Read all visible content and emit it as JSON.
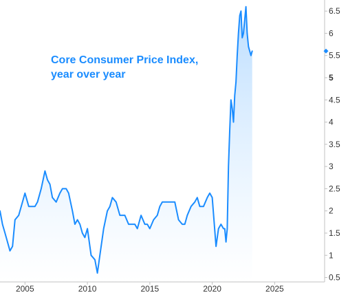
{
  "chart_data": {
    "type": "area",
    "title_lines": [
      "Core Consumer Price Index,",
      "year over year"
    ],
    "xlabel": "",
    "ylabel": "",
    "xlim": [
      2003.0,
      2029.0
    ],
    "ylim": [
      0.4,
      6.75
    ],
    "x_ticks": [
      2005,
      2010,
      2015,
      2020,
      2025
    ],
    "y_ticks": [
      0.5,
      1,
      1.5,
      2,
      2.5,
      3,
      3.5,
      4,
      4.5,
      5,
      5.5,
      6,
      6.5
    ],
    "y_tick_labels": [
      "0.5",
      "1",
      "1.5",
      "2",
      "2.5",
      "3",
      "3.5",
      "4",
      "4.5",
      "5",
      "5.5",
      "6",
      "6.5"
    ],
    "highlighted_tick": "5",
    "last_value": 5.6,
    "grid": false,
    "colors": {
      "line": "#1a8cff",
      "fill_top": "#b8dcff",
      "fill_bottom": "#ffffff",
      "title": "#1a8cff"
    },
    "series": [
      {
        "x": [
          2003.0,
          2003.2,
          2003.4,
          2003.6,
          2003.8,
          2004.0,
          2004.2,
          2004.5,
          2004.8,
          2005.0,
          2005.3,
          2005.6,
          2005.8,
          2006.0,
          2006.3,
          2006.6,
          2006.8,
          2007.0,
          2007.2,
          2007.5,
          2007.8,
          2008.0,
          2008.3,
          2008.5,
          2008.8,
          2009.0,
          2009.2,
          2009.4,
          2009.6,
          2009.8,
          2010.0,
          2010.3,
          2010.6,
          2010.8,
          2011.0,
          2011.3,
          2011.6,
          2011.8,
          2012.0,
          2012.3,
          2012.6,
          2012.8,
          2013.0,
          2013.3,
          2013.6,
          2013.8,
          2014.0,
          2014.3,
          2014.6,
          2014.8,
          2015.0,
          2015.3,
          2015.6,
          2015.8,
          2016.0,
          2016.3,
          2016.6,
          2016.8,
          2017.0,
          2017.3,
          2017.6,
          2017.8,
          2018.0,
          2018.3,
          2018.6,
          2018.8,
          2019.0,
          2019.3,
          2019.6,
          2019.8,
          2020.0,
          2020.3,
          2020.5,
          2020.7,
          2020.9,
          2021.0,
          2021.1,
          2021.2,
          2021.3,
          2021.4,
          2021.5,
          2021.6,
          2021.7,
          2021.8,
          2021.9,
          2022.0,
          2022.1,
          2022.2,
          2022.3,
          2022.4,
          2022.5,
          2022.6,
          2022.7,
          2022.8,
          2022.9,
          2023.0,
          2023.1,
          2023.2
        ],
        "values": [
          2.0,
          1.7,
          1.5,
          1.3,
          1.1,
          1.2,
          1.8,
          1.9,
          2.2,
          2.4,
          2.1,
          2.1,
          2.1,
          2.2,
          2.5,
          2.9,
          2.7,
          2.6,
          2.3,
          2.2,
          2.4,
          2.5,
          2.5,
          2.4,
          2.0,
          1.7,
          1.8,
          1.7,
          1.5,
          1.4,
          1.6,
          1.0,
          0.9,
          0.6,
          1.0,
          1.6,
          2.0,
          2.1,
          2.3,
          2.2,
          1.9,
          1.9,
          1.9,
          1.7,
          1.7,
          1.7,
          1.6,
          1.9,
          1.7,
          1.7,
          1.6,
          1.8,
          1.9,
          2.1,
          2.2,
          2.2,
          2.2,
          2.2,
          2.2,
          1.8,
          1.7,
          1.7,
          1.9,
          2.1,
          2.2,
          2.3,
          2.1,
          2.1,
          2.3,
          2.4,
          2.3,
          1.2,
          1.6,
          1.7,
          1.6,
          1.6,
          1.3,
          1.6,
          3.0,
          3.8,
          4.5,
          4.3,
          4.0,
          4.6,
          4.9,
          5.5,
          6.0,
          6.4,
          6.5,
          5.9,
          6.0,
          6.3,
          6.6,
          6.0,
          5.7,
          5.6,
          5.5,
          5.6
        ]
      }
    ]
  }
}
